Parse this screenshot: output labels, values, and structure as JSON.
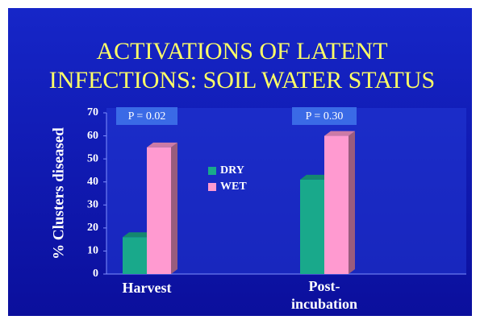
{
  "chart_data": {
    "type": "bar",
    "title": [
      "ACTIVATIONS OF LATENT",
      "INFECTIONS:  SOIL WATER STATUS"
    ],
    "y_label": "% Clusters diseased",
    "categories": [
      "Harvest",
      "Post-\nincubation"
    ],
    "series": [
      {
        "name": "DRY",
        "color": "#19a98b",
        "values": [
          16,
          41
        ]
      },
      {
        "name": "WET",
        "color": "#ff9ad0",
        "values": [
          55,
          60
        ]
      }
    ],
    "annotations": [
      "P = 0.02",
      "P = 0.30"
    ],
    "ylim": [
      0,
      70
    ],
    "yticks": [
      0,
      10,
      20,
      30,
      40,
      50,
      60,
      70
    ]
  }
}
